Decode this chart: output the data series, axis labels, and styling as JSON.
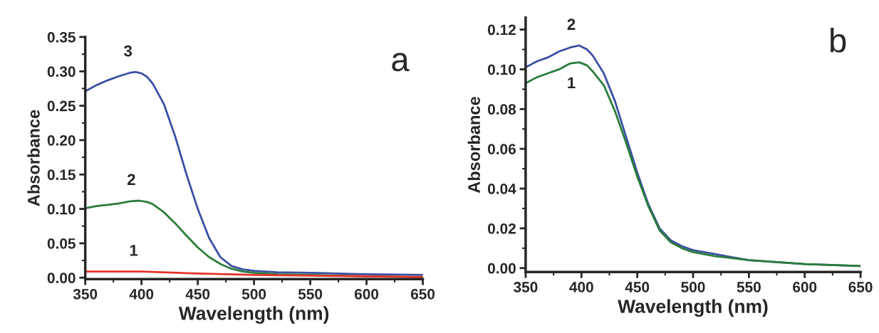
{
  "chart_data": [
    {
      "type": "line",
      "xlabel": "Wavelength (nm)",
      "ylabel": "Absorbance",
      "xlim": [
        350,
        650
      ],
      "ylim": [
        -0.002,
        0.35
      ],
      "xticks": [
        350,
        400,
        450,
        500,
        550,
        600,
        650
      ],
      "yticks": [
        {
          "value": 0,
          "label": "0.00"
        },
        0.05,
        {
          "value": 0.1,
          "label": "0.10"
        },
        0.15,
        {
          "value": 0.2,
          "label": "0.20"
        },
        0.25,
        {
          "value": 0.3,
          "label": "0.30"
        },
        0.35
      ],
      "grid": false,
      "legend": false,
      "annotations": [
        "a"
      ],
      "series": [
        {
          "name": "3",
          "color": "#3a4fa3",
          "x": [
            350,
            360,
            370,
            380,
            390,
            395,
            400,
            405,
            410,
            420,
            430,
            440,
            450,
            460,
            470,
            480,
            490,
            500,
            520,
            550,
            600,
            650
          ],
          "values": [
            0.271,
            0.28,
            0.287,
            0.293,
            0.298,
            0.299,
            0.297,
            0.292,
            0.282,
            0.252,
            0.205,
            0.15,
            0.1,
            0.058,
            0.03,
            0.017,
            0.012,
            0.01,
            0.008,
            0.007,
            0.005,
            0.004
          ]
        },
        {
          "name": "2",
          "color": "#2a7d3a",
          "x": [
            350,
            360,
            370,
            380,
            390,
            398,
            405,
            410,
            420,
            430,
            440,
            450,
            460,
            470,
            480,
            490,
            500,
            520,
            550,
            600,
            650
          ],
          "values": [
            0.101,
            0.104,
            0.106,
            0.108,
            0.111,
            0.112,
            0.11,
            0.107,
            0.095,
            0.079,
            0.061,
            0.044,
            0.03,
            0.02,
            0.013,
            0.009,
            0.007,
            0.005,
            0.004,
            0.002,
            0.001
          ]
        },
        {
          "name": "1",
          "color": "#e8322a",
          "x": [
            350,
            400,
            450,
            500,
            550,
            600,
            650
          ],
          "values": [
            0.009,
            0.009,
            0.006,
            0.004,
            0.003,
            0.002,
            0.001
          ]
        }
      ]
    },
    {
      "type": "line",
      "xlabel": "Wavelength (nm)",
      "ylabel": "Absorbance",
      "xlim": [
        350,
        650
      ],
      "ylim": [
        -0.002,
        0.126
      ],
      "xticks": [
        350,
        400,
        450,
        500,
        550,
        600,
        650
      ],
      "yticks": [
        {
          "value": 0,
          "label": "0.00"
        },
        0.02,
        0.04,
        0.06,
        0.08,
        {
          "value": 0.1,
          "label": "0.10"
        },
        0.12
      ],
      "grid": false,
      "legend": false,
      "annotations": [
        "b"
      ],
      "series": [
        {
          "name": "2",
          "color": "#3a4fa3",
          "x": [
            350,
            360,
            370,
            380,
            390,
            398,
            405,
            410,
            420,
            430,
            440,
            450,
            460,
            470,
            480,
            490,
            500,
            520,
            550,
            600,
            650
          ],
          "values": [
            0.101,
            0.104,
            0.106,
            0.109,
            0.111,
            0.112,
            0.11,
            0.107,
            0.098,
            0.084,
            0.066,
            0.048,
            0.032,
            0.02,
            0.014,
            0.011,
            0.009,
            0.007,
            0.004,
            0.002,
            0.001
          ]
        },
        {
          "name": "1",
          "color": "#2a7d3a",
          "x": [
            350,
            360,
            370,
            380,
            390,
            398,
            405,
            410,
            420,
            430,
            440,
            450,
            460,
            470,
            480,
            490,
            500,
            520,
            550,
            600,
            650
          ],
          "values": [
            0.093,
            0.096,
            0.098,
            0.1,
            0.103,
            0.1035,
            0.102,
            0.099,
            0.092,
            0.079,
            0.063,
            0.046,
            0.031,
            0.019,
            0.013,
            0.01,
            0.008,
            0.006,
            0.004,
            0.002,
            0.001
          ]
        }
      ]
    }
  ]
}
